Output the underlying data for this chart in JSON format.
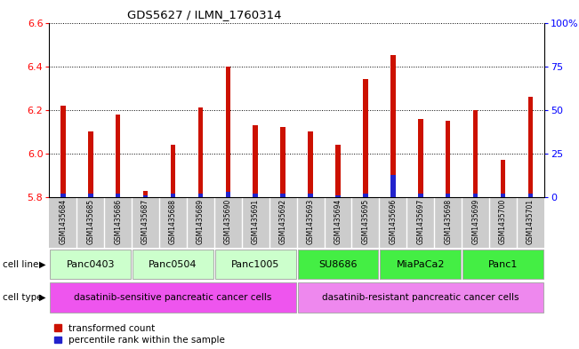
{
  "title": "GDS5627 / ILMN_1760314",
  "samples": [
    "GSM1435684",
    "GSM1435685",
    "GSM1435686",
    "GSM1435687",
    "GSM1435688",
    "GSM1435689",
    "GSM1435690",
    "GSM1435691",
    "GSM1435692",
    "GSM1435693",
    "GSM1435694",
    "GSM1435695",
    "GSM1435696",
    "GSM1435697",
    "GSM1435698",
    "GSM1435699",
    "GSM1435700",
    "GSM1435701"
  ],
  "transformed_count": [
    6.22,
    6.1,
    6.18,
    5.83,
    6.04,
    6.21,
    6.4,
    6.13,
    6.12,
    6.1,
    6.04,
    6.34,
    6.45,
    6.16,
    6.15,
    6.2,
    5.97,
    6.26
  ],
  "percentile_rank": [
    2,
    2,
    2,
    1,
    2,
    2,
    3,
    2,
    2,
    2,
    1,
    2,
    13,
    2,
    2,
    2,
    2,
    2
  ],
  "cell_lines": [
    {
      "name": "Panc0403",
      "start": 0,
      "end": 3,
      "color": "#ccffcc"
    },
    {
      "name": "Panc0504",
      "start": 3,
      "end": 6,
      "color": "#ccffcc"
    },
    {
      "name": "Panc1005",
      "start": 6,
      "end": 9,
      "color": "#ccffcc"
    },
    {
      "name": "SU8686",
      "start": 9,
      "end": 12,
      "color": "#44ee44"
    },
    {
      "name": "MiaPaCa2",
      "start": 12,
      "end": 15,
      "color": "#44ee44"
    },
    {
      "name": "Panc1",
      "start": 15,
      "end": 18,
      "color": "#44ee44"
    }
  ],
  "cell_types": [
    {
      "name": "dasatinib-sensitive pancreatic cancer cells",
      "start": 0,
      "end": 9,
      "color": "#ee55ee"
    },
    {
      "name": "dasatinib-resistant pancreatic cancer cells",
      "start": 9,
      "end": 18,
      "color": "#ee88ee"
    }
  ],
  "ylim": [
    5.8,
    6.6
  ],
  "yticks": [
    5.8,
    6.0,
    6.2,
    6.4,
    6.6
  ],
  "bar_color": "#cc1100",
  "percentile_color": "#2222cc",
  "bar_bottom": 5.8,
  "percentile_max": 100,
  "percentile_scale_ticks": [
    0,
    25,
    50,
    75,
    100
  ],
  "cell_line_row_label": "cell line",
  "cell_type_row_label": "cell type",
  "legend_transformed": "transformed count",
  "legend_percentile": "percentile rank within the sample",
  "background_color": "#ffffff",
  "sample_bg_color": "#cccccc",
  "bar_width": 0.18
}
